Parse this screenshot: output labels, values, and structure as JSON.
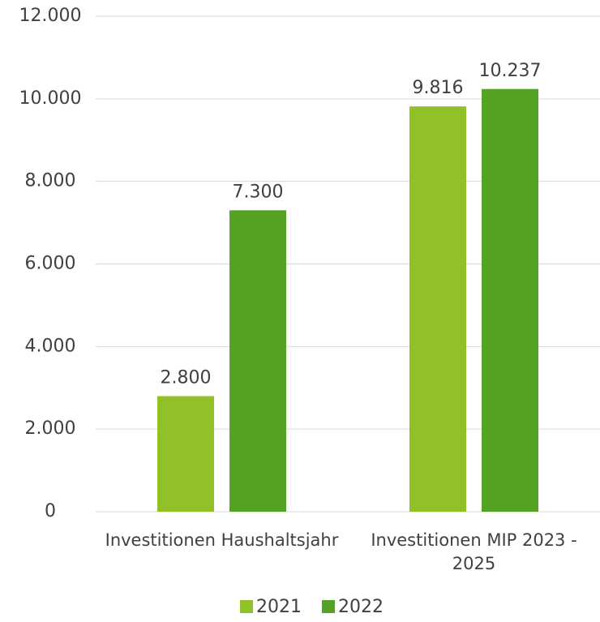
{
  "chart_data": {
    "type": "bar",
    "categories": [
      "Investitionen Haushaltsjahr",
      "Investitionen MIP 2023 - 2025"
    ],
    "series": [
      {
        "name": "2021",
        "color": "#92c027",
        "values": [
          2800,
          9816
        ],
        "value_labels": [
          "2.800",
          "9.816"
        ]
      },
      {
        "name": "2022",
        "color": "#55a224",
        "values": [
          7300,
          10237
        ],
        "value_labels": [
          "7.300",
          "10.237"
        ]
      }
    ],
    "ylim": [
      0,
      12000
    ],
    "yticks": [
      0,
      {
        "value": 2000,
        "label": "2.000"
      },
      {
        "value": 4000,
        "label": "4.000"
      },
      {
        "value": 6000,
        "label": "6.000"
      },
      {
        "value": 8000,
        "label": "8.000"
      },
      {
        "value": 10000,
        "label": "10.000"
      },
      {
        "value": 12000,
        "label": "12.000"
      }
    ],
    "grid": true,
    "legend": "bottom"
  }
}
